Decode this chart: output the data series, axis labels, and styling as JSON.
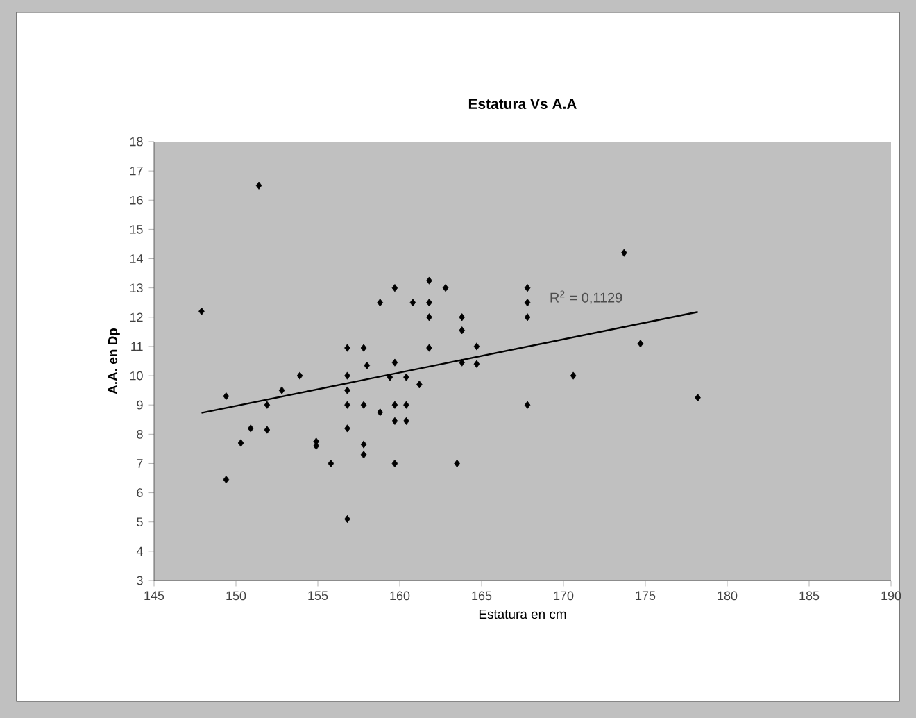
{
  "chart_data": {
    "type": "scatter",
    "title": "Estatura Vs A.A",
    "xlabel": "Estatura en cm",
    "ylabel": "A.A. en Dp",
    "xlim": [
      145,
      190
    ],
    "xticks": [
      145,
      150,
      155,
      160,
      165,
      170,
      175,
      180,
      185,
      190
    ],
    "ylim": [
      3,
      18
    ],
    "yticks": [
      3,
      4,
      5,
      6,
      7,
      8,
      9,
      10,
      11,
      12,
      13,
      14,
      15,
      16,
      17,
      18
    ],
    "grid": false,
    "annotations": [
      "R$^{2}$ = 0,1129"
    ],
    "series": [
      {
        "color": "#000000",
        "marker": "diamond",
        "x": [
          147.9,
          151.4,
          149.4,
          149.4,
          150.3,
          150.9,
          151.9,
          151.9,
          152.8,
          153.9,
          154.9,
          154.9,
          155.8,
          156.8,
          156.8,
          156.8,
          156.8,
          156.8,
          156.8,
          157.8,
          158.0,
          157.8,
          157.8,
          157.8,
          158.8,
          158.8,
          159.7,
          159.7,
          159.4,
          160.4,
          159.7,
          160.4,
          159.7,
          160.4,
          159.7,
          161.2,
          160.8,
          161.8,
          161.8,
          161.8,
          161.8,
          162.8,
          163.5,
          163.8,
          163.8,
          163.8,
          164.7,
          164.7,
          167.8,
          167.8,
          167.8,
          167.8,
          170.6,
          173.7,
          174.7,
          178.2
        ],
        "values": [
          12.2,
          16.5,
          9.3,
          6.45,
          7.7,
          8.2,
          9.0,
          8.15,
          9.5,
          10.0,
          7.75,
          7.6,
          7.0,
          5.1,
          8.2,
          9.0,
          9.5,
          10.0,
          10.95,
          10.95,
          10.35,
          9.0,
          7.65,
          7.3,
          12.5,
          8.75,
          13.0,
          10.45,
          9.95,
          9.95,
          9.0,
          9.0,
          8.45,
          8.45,
          7.0,
          9.7,
          12.5,
          13.25,
          12.5,
          12.0,
          10.95,
          13.0,
          7.0,
          12.0,
          11.55,
          10.45,
          11.0,
          10.4,
          13.0,
          12.5,
          12.0,
          9.0,
          10.0,
          14.2,
          11.1,
          9.25
        ]
      },
      {
        "type": "line",
        "color": "#000000",
        "x": [
          147.9,
          178.2
        ],
        "values": [
          8.73,
          12.18
        ]
      }
    ]
  }
}
